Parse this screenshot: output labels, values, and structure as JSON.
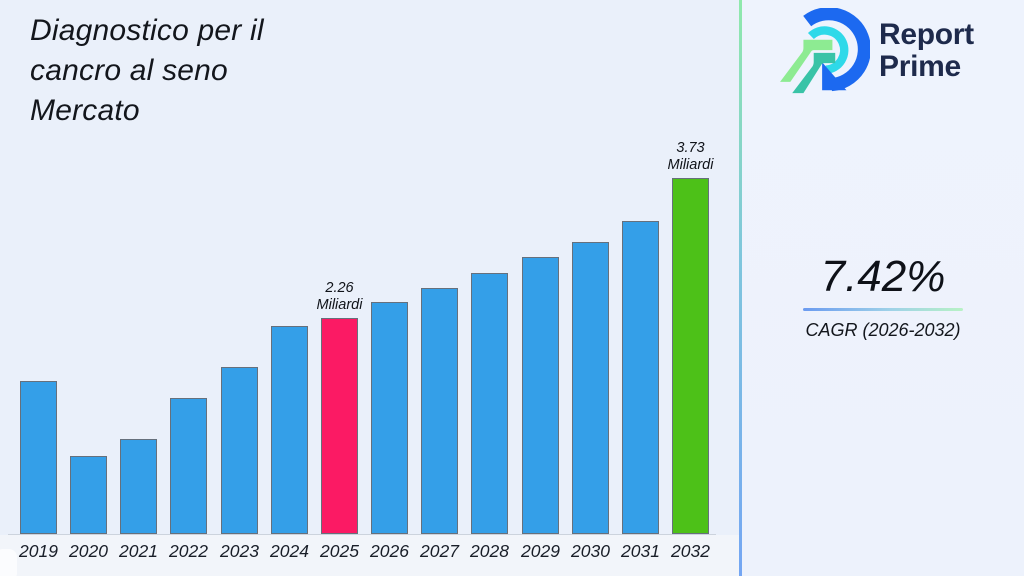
{
  "title": {
    "lines": [
      "Diagnostico per il",
      "cancro al seno",
      "Mercato"
    ]
  },
  "logo": {
    "lines": [
      "Report",
      "Prime"
    ],
    "mark_icon": "report-prime-logo-mark",
    "navy": "#1e2a4c",
    "blue": "#1c69f0",
    "cyan": "#2ed9e9",
    "light_green": "#8deb92",
    "teal": "#39c3a7"
  },
  "cagr": {
    "value": "7.42%",
    "label": "CAGR (2026-2032)"
  },
  "chart_data": {
    "type": "bar",
    "title": "Diagnostico per il cancro al seno Mercato",
    "xlabel": "",
    "ylabel": "",
    "unit_label": "Miliardi",
    "grid": false,
    "legend": false,
    "ylim": [
      0,
      3.9
    ],
    "categories": [
      "2019",
      "2020",
      "2021",
      "2022",
      "2023",
      "2024",
      "2025",
      "2026",
      "2027",
      "2028",
      "2029",
      "2030",
      "2031",
      "2032"
    ],
    "values": [
      1.6,
      0.82,
      1.0,
      1.43,
      1.75,
      2.18,
      2.26,
      2.43,
      2.58,
      2.73,
      2.9,
      3.06,
      3.28,
      3.73
    ],
    "bar_color_default": "#349fe8",
    "highlights": [
      {
        "category": "2025",
        "color": "#fb1a64",
        "label_value": "2.26",
        "label_unit": "Miliardi"
      },
      {
        "category": "2032",
        "color": "#4dc118",
        "label_value": "3.73",
        "label_unit": "Miliardi"
      }
    ]
  },
  "colors": {
    "background_left": "#eaf0fa",
    "background_right": "#edf3fd",
    "separator_top": "#8fe9ab",
    "separator_bottom": "#74a6f3",
    "underline_left": "#6b9bf0",
    "underline_right": "#b8f2c5",
    "axis_line": "#ccd3dd",
    "bar_border": "#66707c",
    "text_dark": "#13161c"
  }
}
